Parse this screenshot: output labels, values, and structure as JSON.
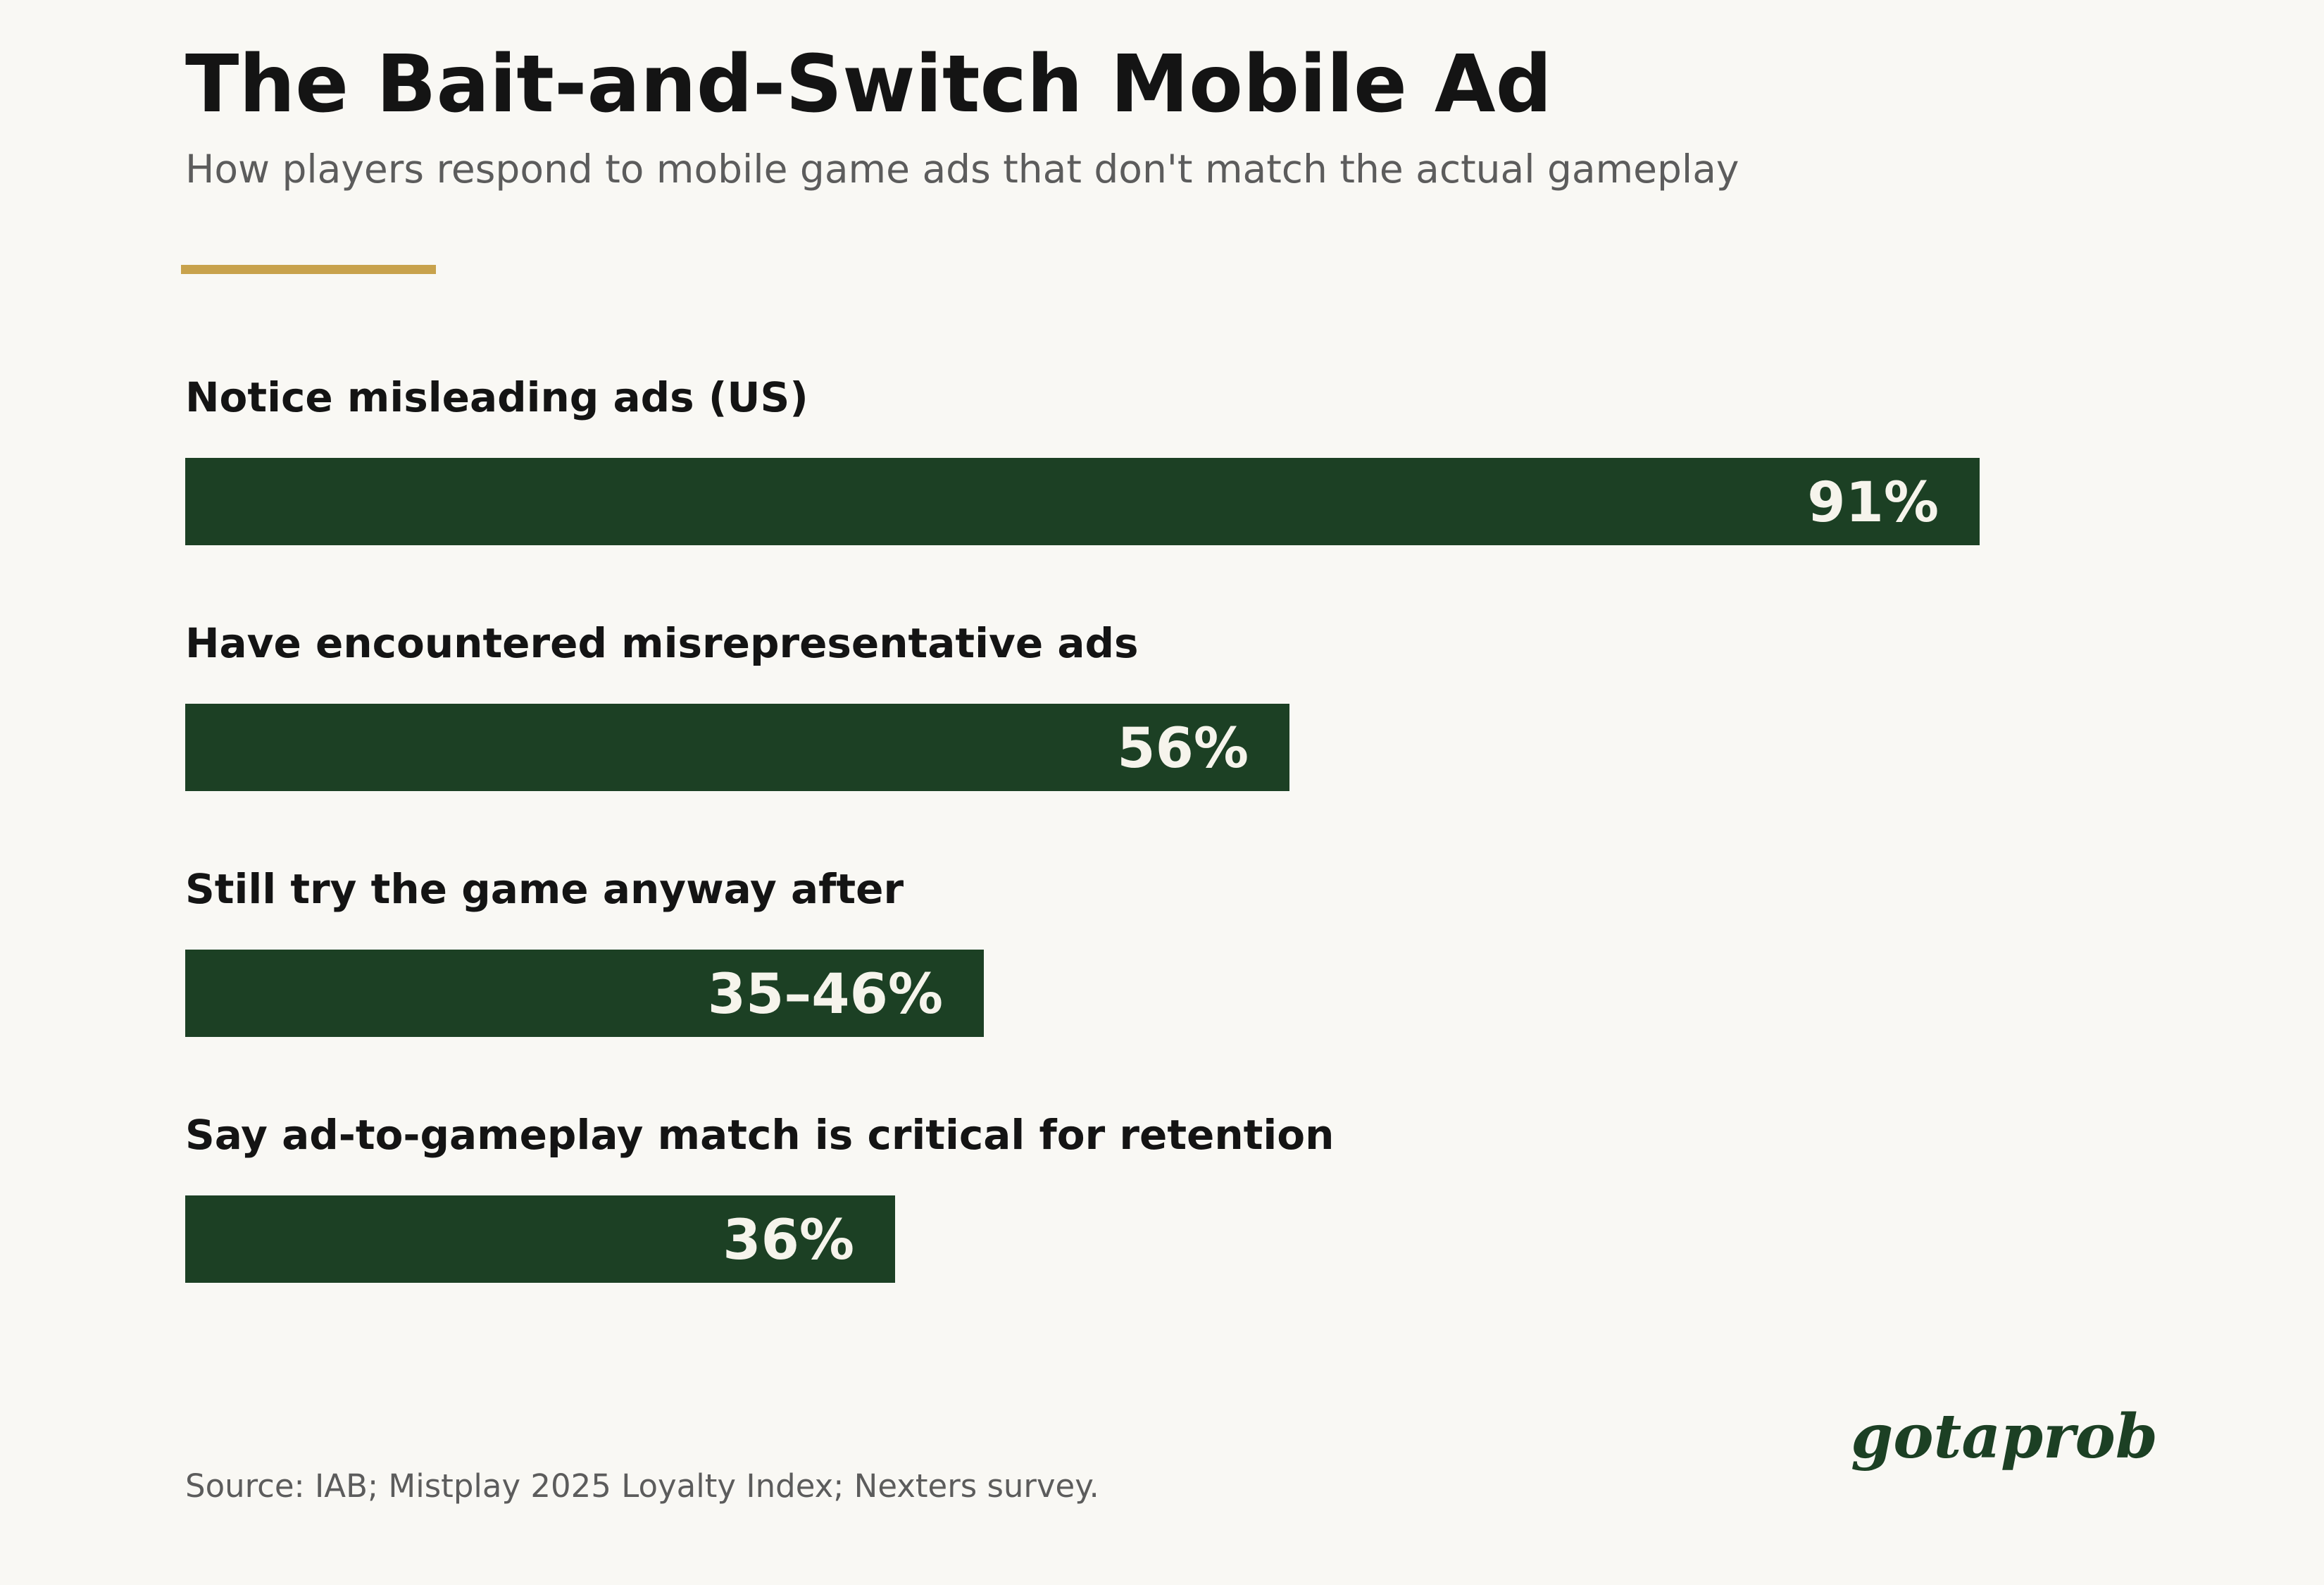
{
  "title": "The Bait-and-Switch Mobile Ad",
  "subtitle": "How players respond to mobile game ads that don't match the actual gameplay",
  "source": "Source: IAB; Mistplay 2025 Loyalty Index; Nexters survey.",
  "brand": "gotaprob",
  "colors": {
    "background": "#f9f8f4",
    "bar": "#1c4024",
    "value_text": "#f6f4ec",
    "label_text": "#141414",
    "accent": "#c8a24c",
    "brand": "#1c4024"
  },
  "chart_data": {
    "type": "bar",
    "orientation": "horizontal",
    "title": "The Bait-and-Switch Mobile Ad",
    "subtitle": "How players respond to mobile game ads that don't match the actual gameplay",
    "categories": [
      "Notice misleading ads (US)",
      "Have encountered misrepresentative ads",
      "Still try the game anyway after",
      "Say ad-to-gameplay match is critical for retention"
    ],
    "values": [
      91,
      56,
      40.5,
      36
    ],
    "value_labels": [
      "91%",
      "56%",
      "35–46%",
      "36%"
    ],
    "range": [
      null,
      null,
      [
        35,
        46
      ],
      null
    ],
    "unit": "%",
    "xlim": [
      0,
      100
    ],
    "grid": false,
    "legend": "none"
  }
}
